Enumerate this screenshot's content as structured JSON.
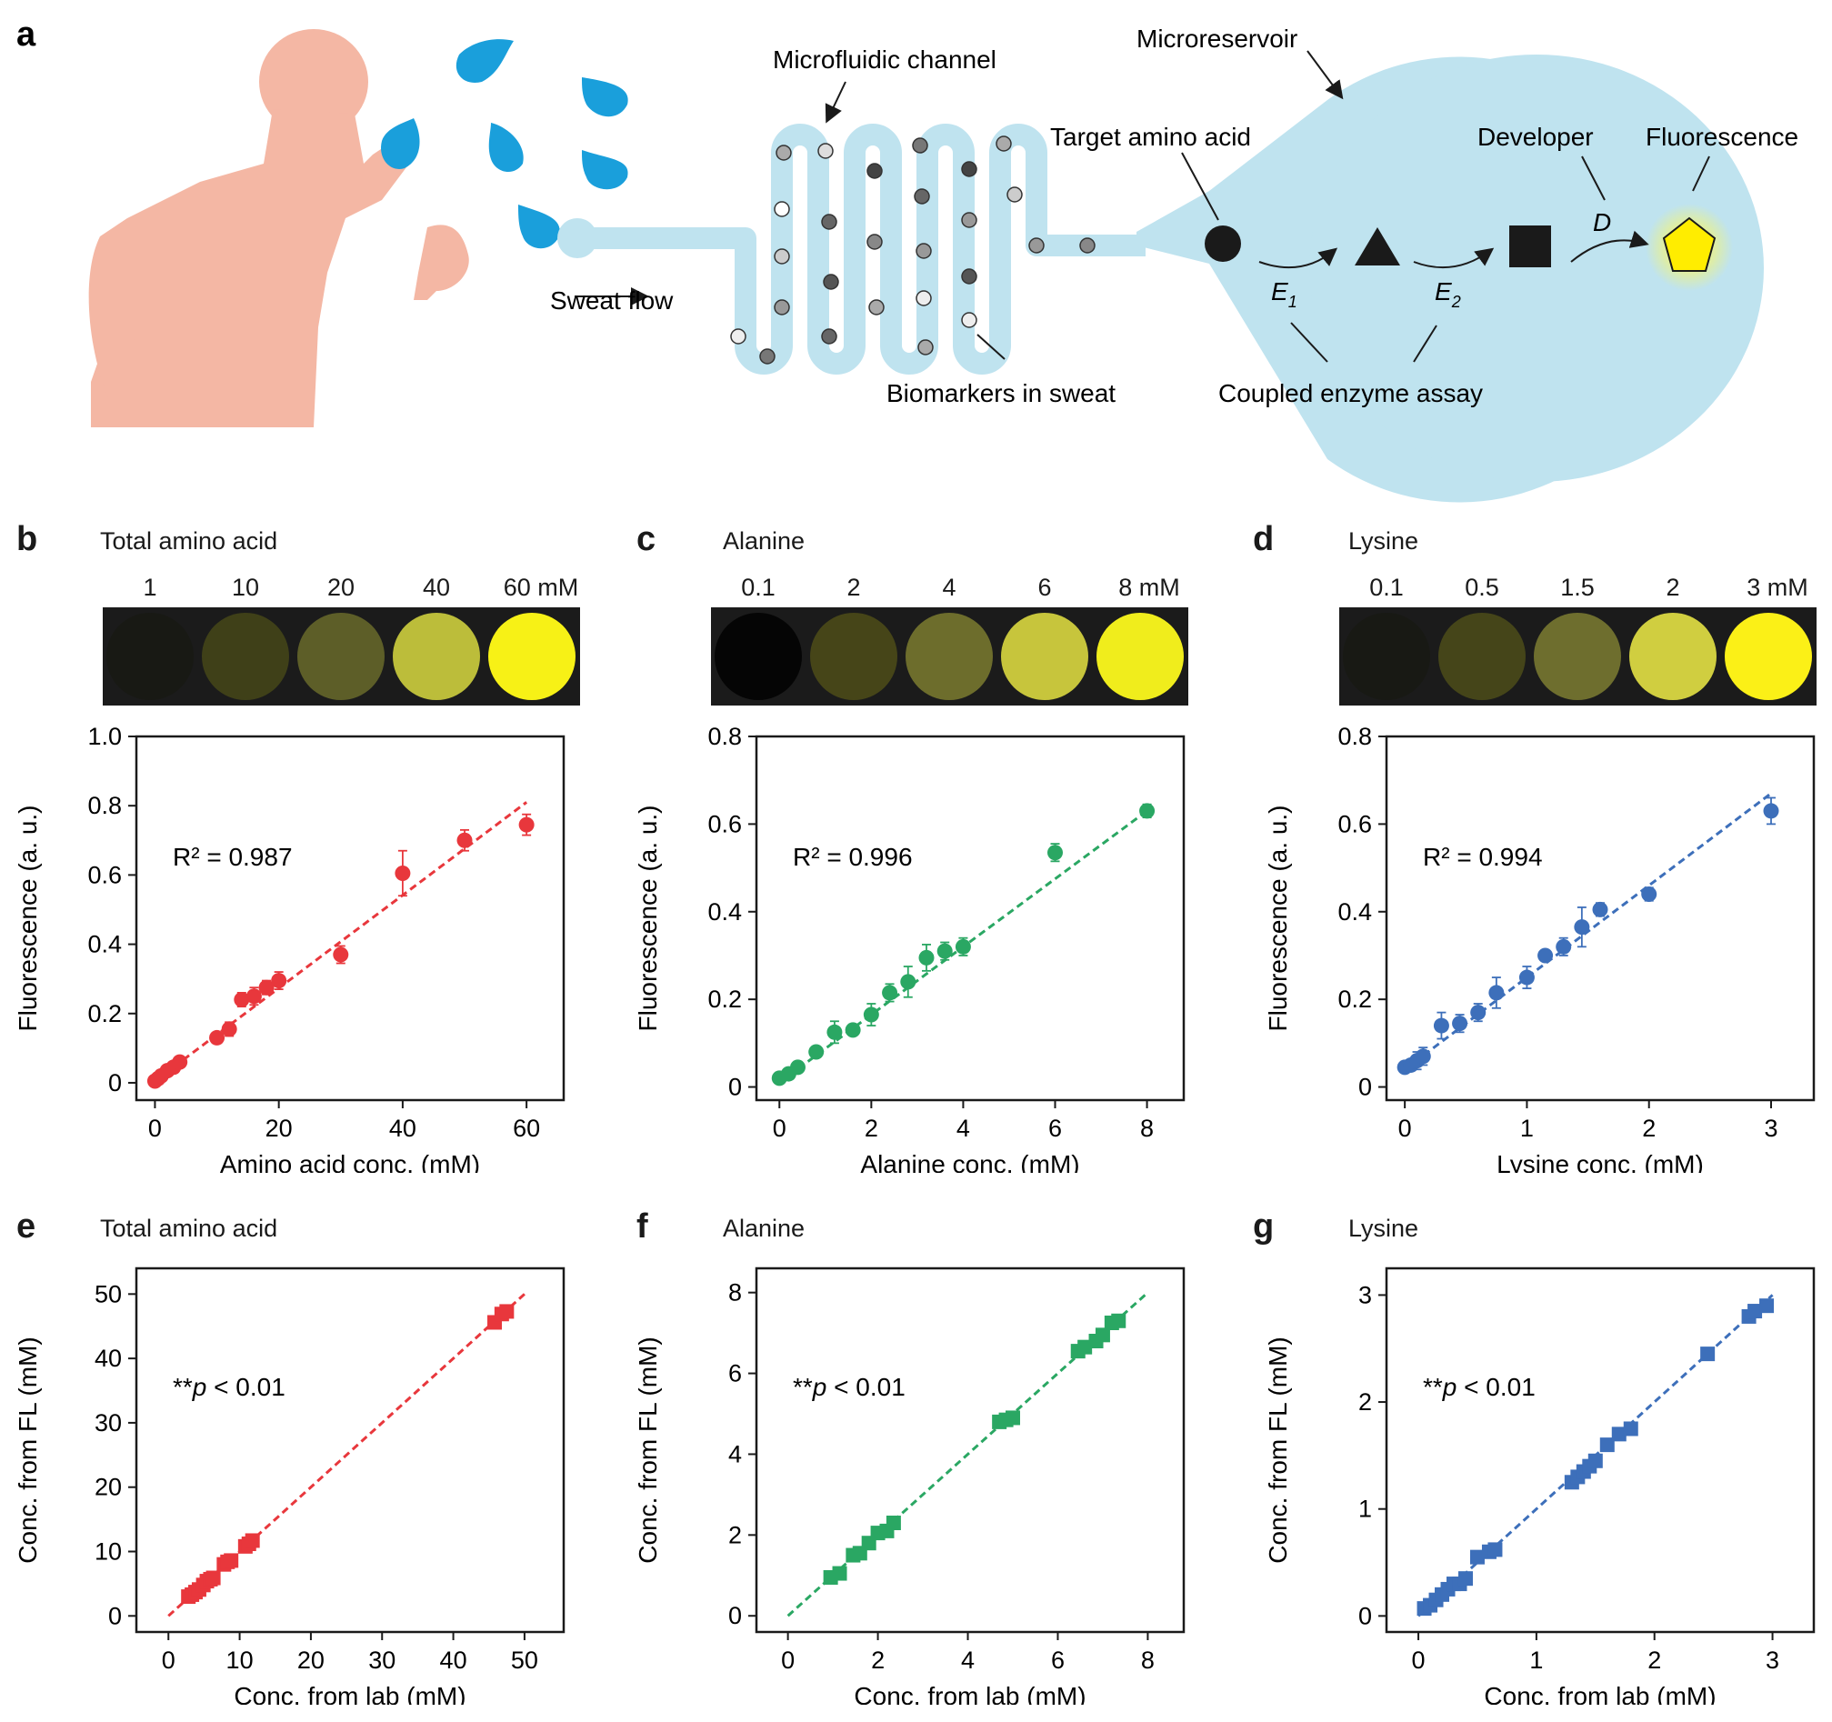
{
  "schematic": {
    "panel_letter": "a",
    "sweat_flow_label": "Sweat flow",
    "channel_label": "Microfluidic channel",
    "reservoir_label": "Microreservoir",
    "target_label": "Target amino acid",
    "developer_label": "Developer",
    "fluorescence_label": "Fluorescence",
    "biomarkers_label": "Biomarkers in sweat",
    "assay_label": "Coupled enzyme assay",
    "e1_label": "E",
    "e1_sub": "1",
    "e2_label": "E",
    "e2_sub": "2",
    "d_label": "D"
  },
  "strips": [
    {
      "labels": [
        "1",
        "10",
        "20",
        "40",
        "60 mM"
      ]
    },
    {
      "labels": [
        "0.1",
        "2",
        "4",
        "6",
        "8 mM"
      ]
    },
    {
      "labels": [
        "0.1",
        "0.5",
        "1.5",
        "2",
        "3 mM"
      ]
    }
  ],
  "chart_data": [
    {
      "type": "scatter",
      "panel": "b",
      "title": "Total amino acid",
      "color": "#e8373c",
      "marker": "circle",
      "xlabel": "Amino acid conc. (mM)",
      "ylabel": "Fluorescence (a. u.)",
      "xlim": [
        -3,
        66
      ],
      "ylim": [
        -0.05,
        1.0
      ],
      "xticks": [
        0,
        20,
        40,
        60
      ],
      "yticks": [
        0,
        0.2,
        0.4,
        0.6,
        0.8,
        1.0
      ],
      "ytick_labels": [
        "0",
        "0.2",
        "0.4",
        "0.6",
        "0.8",
        "1.0"
      ],
      "annotation": "R² = 0.987",
      "fit": [
        [
          0,
          0.005
        ],
        [
          60,
          0.81
        ]
      ],
      "x": [
        0,
        0.5,
        1,
        2,
        3,
        4,
        10,
        12,
        14,
        16,
        18,
        20,
        30,
        40,
        50,
        60
      ],
      "y": [
        0.005,
        0.012,
        0.02,
        0.035,
        0.045,
        0.06,
        0.13,
        0.155,
        0.24,
        0.25,
        0.275,
        0.295,
        0.37,
        0.605,
        0.7,
        0.745
      ],
      "err": [
        0.005,
        0.005,
        0.005,
        0.008,
        0.008,
        0.01,
        0.01,
        0.02,
        0.02,
        0.025,
        0.02,
        0.025,
        0.025,
        0.065,
        0.03,
        0.03
      ]
    },
    {
      "type": "scatter",
      "panel": "c",
      "title": "Alanine",
      "color": "#2aa763",
      "marker": "circle",
      "xlabel": "Alanine conc. (mM)",
      "ylabel": "Fluorescence (a. u.)",
      "xlim": [
        -0.5,
        8.8
      ],
      "ylim": [
        -0.03,
        0.8
      ],
      "xticks": [
        0,
        2,
        4,
        6,
        8
      ],
      "yticks": [
        0,
        0.2,
        0.4,
        0.6,
        0.8
      ],
      "ytick_labels": [
        "0",
        "0.2",
        "0.4",
        "0.6",
        "0.8"
      ],
      "annotation": "R² = 0.996",
      "fit": [
        [
          0,
          0.01
        ],
        [
          8,
          0.63
        ]
      ],
      "x": [
        0,
        0.2,
        0.4,
        0.8,
        1.2,
        1.6,
        2.0,
        2.4,
        2.8,
        3.2,
        3.6,
        4.0,
        6.0,
        8.0
      ],
      "y": [
        0.02,
        0.03,
        0.045,
        0.08,
        0.125,
        0.13,
        0.165,
        0.215,
        0.24,
        0.295,
        0.31,
        0.32,
        0.535,
        0.63
      ],
      "err": [
        0.005,
        0.005,
        0.005,
        0.008,
        0.025,
        0.01,
        0.025,
        0.02,
        0.035,
        0.03,
        0.02,
        0.02,
        0.02,
        0.015
      ]
    },
    {
      "type": "scatter",
      "panel": "d",
      "title": "Lysine",
      "color": "#3d6fba",
      "marker": "circle",
      "xlabel": "Lysine conc. (mM)",
      "ylabel": "Fluorescence (a. u.)",
      "xlim": [
        -0.15,
        3.35
      ],
      "ylim": [
        -0.03,
        0.8
      ],
      "xticks": [
        0,
        1,
        2,
        3
      ],
      "yticks": [
        0,
        0.2,
        0.4,
        0.6,
        0.8
      ],
      "ytick_labels": [
        "0",
        "0.2",
        "0.4",
        "0.6",
        "0.8"
      ],
      "annotation": "R² = 0.994",
      "fit": [
        [
          0,
          0.04
        ],
        [
          3,
          0.67
        ]
      ],
      "x": [
        0,
        0.05,
        0.1,
        0.15,
        0.3,
        0.45,
        0.6,
        0.75,
        1.0,
        1.15,
        1.3,
        1.45,
        1.6,
        2.0,
        3.0
      ],
      "y": [
        0.045,
        0.05,
        0.06,
        0.07,
        0.14,
        0.145,
        0.17,
        0.215,
        0.25,
        0.3,
        0.32,
        0.365,
        0.405,
        0.44,
        0.63
      ],
      "err": [
        0.01,
        0.01,
        0.02,
        0.02,
        0.03,
        0.02,
        0.02,
        0.035,
        0.025,
        0.01,
        0.02,
        0.045,
        0.015,
        0.015,
        0.03
      ]
    },
    {
      "type": "scatter",
      "panel": "e",
      "title": "Total amino acid",
      "color": "#e8373c",
      "marker": "square",
      "xlabel": "Conc. from lab (mM)",
      "ylabel": "Conc. from FL (mM)",
      "xlim": [
        -4.5,
        55.5
      ],
      "ylim": [
        -2.5,
        54
      ],
      "xticks": [
        0,
        10,
        20,
        30,
        40,
        50
      ],
      "yticks": [
        0,
        10,
        20,
        30,
        40,
        50
      ],
      "ytick_labels": [
        "0",
        "10",
        "20",
        "30",
        "40",
        "50"
      ],
      "annotation_prefix": "**",
      "annotation_italic": "p",
      "annotation_suffix": " < 0.01",
      "fit": [
        [
          0,
          0
        ],
        [
          50,
          50
        ]
      ],
      "x": [
        2.8,
        3.3,
        3.8,
        4.3,
        4.9,
        5.4,
        5.9,
        6.3,
        7.8,
        8.3,
        8.8,
        10.8,
        11.3,
        11.8,
        45.8,
        46.8,
        47.5
      ],
      "y": [
        3.0,
        3.3,
        3.7,
        4.1,
        4.8,
        5.4,
        5.7,
        5.9,
        8.0,
        8.4,
        8.6,
        10.8,
        11.2,
        11.7,
        45.6,
        46.9,
        47.3
      ],
      "err": [
        0.3,
        0.3,
        0.3,
        0.3,
        0.3,
        0.3,
        0.3,
        0.3,
        0.3,
        0.3,
        0.3,
        0.3,
        0.3,
        0.3,
        0.3,
        0.3,
        0.3
      ]
    },
    {
      "type": "scatter",
      "panel": "f",
      "title": "Alanine",
      "color": "#2aa763",
      "marker": "square",
      "xlabel": "Conc. from lab (mM)",
      "ylabel": "Conc. from FL (mM)",
      "xlim": [
        -0.7,
        8.8
      ],
      "ylim": [
        -0.4,
        8.6
      ],
      "xticks": [
        0,
        2,
        4,
        6,
        8
      ],
      "yticks": [
        0,
        2,
        4,
        6,
        8
      ],
      "ytick_labels": [
        "0",
        "2",
        "4",
        "6",
        "8"
      ],
      "annotation_prefix": "**",
      "annotation_italic": "p",
      "annotation_suffix": " < 0.01",
      "fit": [
        [
          0,
          0
        ],
        [
          8,
          8
        ]
      ],
      "x": [
        0.95,
        1.15,
        1.45,
        1.6,
        1.8,
        2.0,
        2.2,
        2.35,
        4.7,
        4.85,
        5.0,
        6.45,
        6.6,
        6.85,
        7.0,
        7.2,
        7.35
      ],
      "y": [
        0.95,
        1.05,
        1.5,
        1.55,
        1.8,
        2.05,
        2.1,
        2.3,
        4.8,
        4.85,
        4.9,
        6.55,
        6.65,
        6.8,
        6.95,
        7.25,
        7.3
      ],
      "err": [
        0.08,
        0.08,
        0.08,
        0.08,
        0.08,
        0.08,
        0.08,
        0.08,
        0.08,
        0.08,
        0.08,
        0.08,
        0.08,
        0.08,
        0.08,
        0.08,
        0.08
      ]
    },
    {
      "type": "scatter",
      "panel": "g",
      "title": "Lysine",
      "color": "#3d6fba",
      "marker": "square",
      "xlabel": "Conc. from lab (mM)",
      "ylabel": "Conc. from FL (mM)",
      "xlim": [
        -0.27,
        3.35
      ],
      "ylim": [
        -0.15,
        3.25
      ],
      "xticks": [
        0,
        1,
        2,
        3
      ],
      "yticks": [
        0,
        1,
        2,
        3
      ],
      "ytick_labels": [
        "0",
        "1",
        "2",
        "3"
      ],
      "annotation_prefix": "**",
      "annotation_italic": "p",
      "annotation_suffix": " < 0.01",
      "fit": [
        [
          0,
          0
        ],
        [
          3,
          3
        ]
      ],
      "x": [
        0.05,
        0.1,
        0.15,
        0.2,
        0.25,
        0.3,
        0.35,
        0.4,
        0.5,
        0.6,
        0.65,
        1.3,
        1.35,
        1.4,
        1.45,
        1.5,
        1.6,
        1.7,
        1.8,
        2.45,
        2.8,
        2.85,
        2.95
      ],
      "y": [
        0.07,
        0.1,
        0.15,
        0.2,
        0.25,
        0.3,
        0.3,
        0.35,
        0.55,
        0.6,
        0.62,
        1.25,
        1.3,
        1.35,
        1.4,
        1.45,
        1.6,
        1.7,
        1.75,
        2.45,
        2.8,
        2.85,
        2.9
      ],
      "err": [
        0.03,
        0.03,
        0.03,
        0.03,
        0.03,
        0.03,
        0.03,
        0.03,
        0.03,
        0.03,
        0.03,
        0.03,
        0.03,
        0.03,
        0.03,
        0.03,
        0.03,
        0.03,
        0.03,
        0.03,
        0.03,
        0.03,
        0.03
      ]
    }
  ]
}
